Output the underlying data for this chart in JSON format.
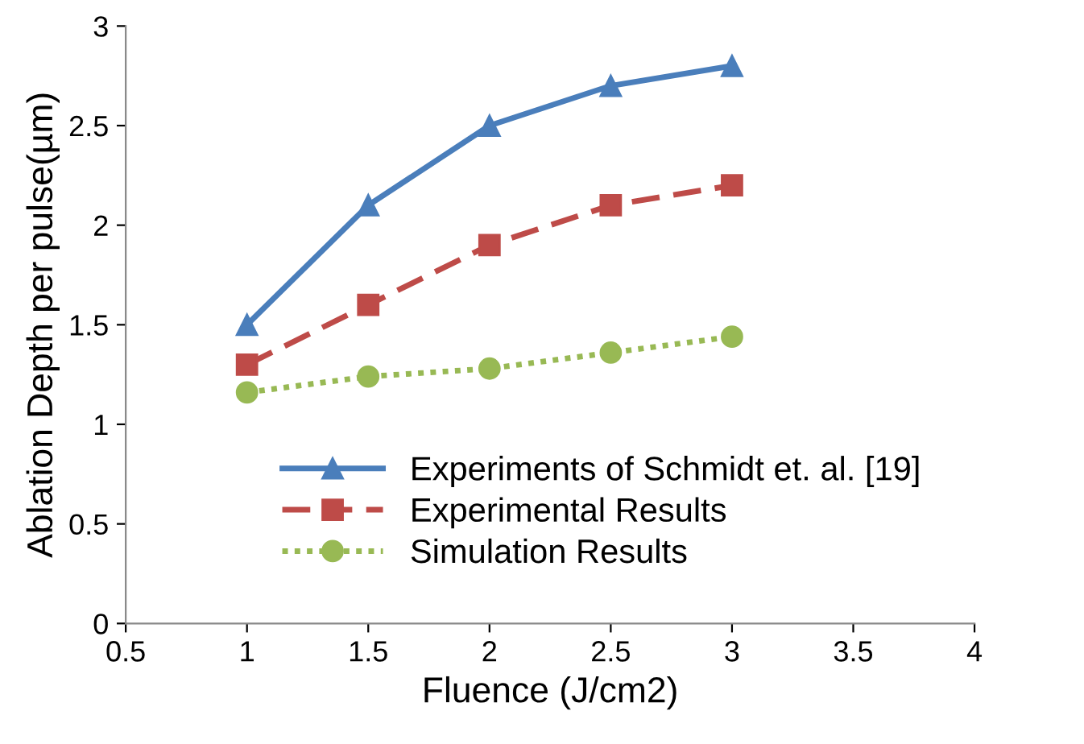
{
  "chart_data": {
    "type": "line",
    "xlabel": "Fluence (J/cm2)",
    "ylabel": "Ablation Depth per pulse(µm)",
    "x": [
      1,
      1.5,
      2,
      2.5,
      3
    ],
    "series": [
      {
        "name": "Experiments of Schmidt et. al. [19]",
        "color": "#4a7ebb",
        "values": [
          1.5,
          2.1,
          2.5,
          2.7,
          2.8
        ],
        "marker": "triangle",
        "line_style": "solid"
      },
      {
        "name": "Experimental Results",
        "color": "#be4b48",
        "values": [
          1.3,
          1.6,
          1.9,
          2.1,
          2.2
        ],
        "marker": "square",
        "line_style": "dashed"
      },
      {
        "name": "Simulation Results",
        "color": "#98b954",
        "values": [
          1.16,
          1.24,
          1.28,
          1.36,
          1.44
        ],
        "marker": "circle",
        "line_style": "dotted"
      }
    ],
    "xlim": [
      0.5,
      4
    ],
    "xticks": [
      0.5,
      1,
      1.5,
      2,
      2.5,
      3,
      3.5,
      4
    ],
    "ylim": [
      0,
      3
    ],
    "yticks": [
      0,
      0.5,
      1,
      1.5,
      2,
      2.5,
      3
    ],
    "grid": false,
    "legend": "bottom right"
  }
}
